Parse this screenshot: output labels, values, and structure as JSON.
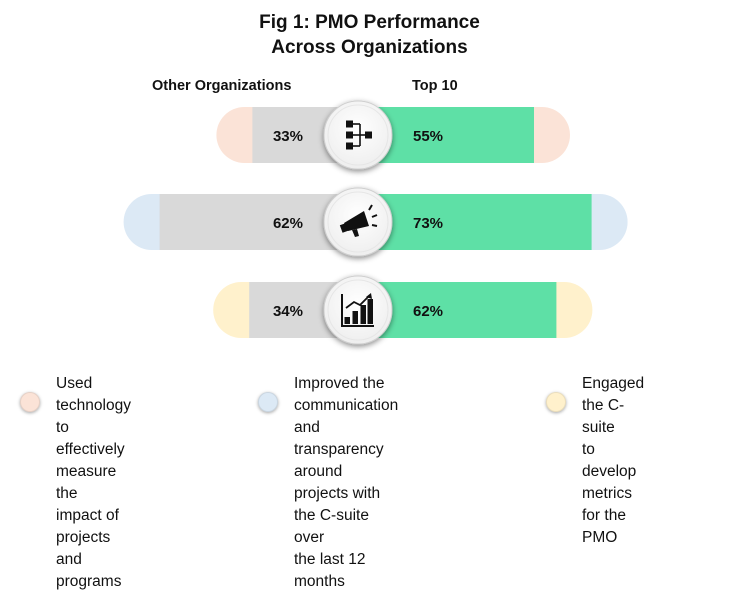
{
  "title_line1": "Fig 1: PMO Performance",
  "title_line2": "Across Organizations",
  "chart_data": {
    "type": "bar",
    "orientation": "diverging-horizontal",
    "title": "Fig 1: PMO Performance Across Organizations",
    "categories": [
      "Used technology to effectively measure the impact of projects and programs",
      "Improved the communication and transparency around projects with the C-suite over the last 12 months",
      "Engaged the C-suite to develop metrics for the PMO"
    ],
    "series": [
      {
        "name": "Other Organizations",
        "values": [
          33,
          62,
          34
        ],
        "labels": [
          "33%",
          "62%",
          "34%"
        ],
        "color": "#d9d9d9"
      },
      {
        "name": "Top 10",
        "values": [
          55,
          73,
          62
        ],
        "labels": [
          "55%",
          "73%",
          "62%"
        ],
        "color": "#5ee0a6"
      }
    ],
    "category_colors": [
      "#fbe3d7",
      "#dce9f5",
      "#fff1cc"
    ],
    "category_icons": [
      "hierarchy-icon",
      "megaphone-icon",
      "bar-chart-icon"
    ],
    "legend_position": "bottom"
  },
  "legend": [
    {
      "lines": [
        "Used technology to",
        "effectively measure the",
        "impact of projects and",
        "programs"
      ],
      "color": "#fbe3d7"
    },
    {
      "lines": [
        "Improved the communication",
        "and transparency around",
        "projects with the C-suite over",
        "the last 12 months"
      ],
      "color": "#dce9f5"
    },
    {
      "lines": [
        "Engaged the C-suite",
        "to develop metrics",
        "for the PMO"
      ],
      "color": "#fff1cc"
    }
  ]
}
